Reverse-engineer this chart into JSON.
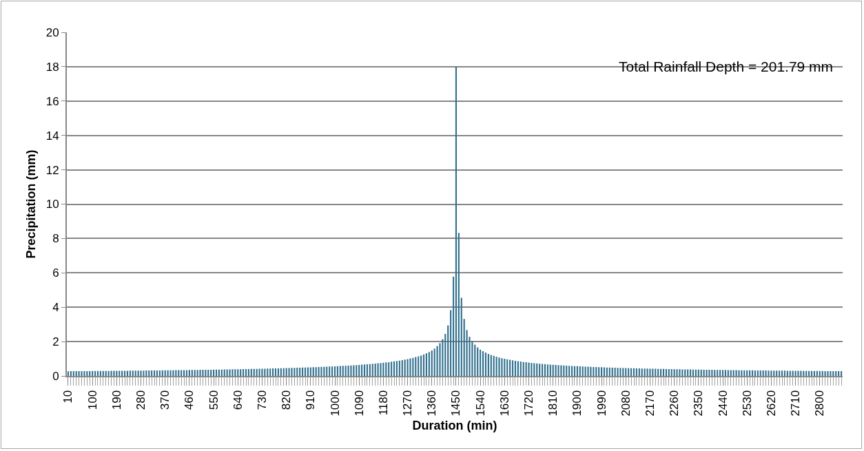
{
  "chart_data": {
    "type": "bar",
    "xlabel": "Duration (min)",
    "ylabel": "Precipitation (mm)",
    "annotations": [
      "Total Rainfall Depth = 201.79 mm"
    ],
    "categories": [
      "10",
      null,
      null,
      null,
      null,
      null,
      null,
      null,
      null,
      "100",
      null,
      null,
      null,
      null,
      null,
      null,
      null,
      null,
      "190",
      null,
      null,
      null,
      null,
      null,
      null,
      null,
      null,
      "280",
      null,
      null,
      null,
      null,
      null,
      null,
      null,
      null,
      "370",
      null,
      null,
      null,
      null,
      null,
      null,
      null,
      null,
      "460",
      null,
      null,
      null,
      null,
      null,
      null,
      null,
      null,
      "550",
      null,
      null,
      null,
      null,
      null,
      null,
      null,
      null,
      "640",
      null,
      null,
      null,
      null,
      null,
      null,
      null,
      null,
      "730",
      null,
      null,
      null,
      null,
      null,
      null,
      null,
      null,
      "820",
      null,
      null,
      null,
      null,
      null,
      null,
      null,
      null,
      "910",
      null,
      null,
      null,
      null,
      null,
      null,
      null,
      null,
      "1000",
      null,
      null,
      null,
      null,
      null,
      null,
      null,
      null,
      "1090",
      null,
      null,
      null,
      null,
      null,
      null,
      null,
      null,
      "1180",
      null,
      null,
      null,
      null,
      null,
      null,
      null,
      null,
      "1270",
      null,
      null,
      null,
      null,
      null,
      null,
      null,
      null,
      "1360",
      null,
      null,
      null,
      null,
      null,
      null,
      null,
      null,
      "1450",
      null,
      null,
      null,
      null,
      null,
      null,
      null,
      null,
      "1540",
      null,
      null,
      null,
      null,
      null,
      null,
      null,
      null,
      "1630",
      null,
      null,
      null,
      null,
      null,
      null,
      null,
      null,
      "1720",
      null,
      null,
      null,
      null,
      null,
      null,
      null,
      null,
      "1810",
      null,
      null,
      null,
      null,
      null,
      null,
      null,
      null,
      "1900",
      null,
      null,
      null,
      null,
      null,
      null,
      null,
      null,
      "1990",
      null,
      null,
      null,
      null,
      null,
      null,
      null,
      null,
      "2080",
      null,
      null,
      null,
      null,
      null,
      null,
      null,
      null,
      "2170",
      null,
      null,
      null,
      null,
      null,
      null,
      null,
      null,
      "2260",
      null,
      null,
      null,
      null,
      null,
      null,
      null,
      null,
      "2350",
      null,
      null,
      null,
      null,
      null,
      null,
      null,
      null,
      "2440",
      null,
      null,
      null,
      null,
      null,
      null,
      null,
      null,
      "2530",
      null,
      null,
      null,
      null,
      null,
      null,
      null,
      null,
      "2620",
      null,
      null,
      null,
      null,
      null,
      null,
      null,
      null,
      "2710",
      null,
      null,
      null,
      null,
      null,
      null,
      null,
      null,
      "2800",
      null,
      null,
      null,
      null,
      null,
      null,
      null,
      null
    ],
    "values": [
      0.27,
      0.28,
      0.28,
      0.28,
      0.28,
      0.28,
      0.28,
      0.28,
      0.28,
      0.29,
      0.29,
      0.29,
      0.29,
      0.29,
      0.29,
      0.29,
      0.3,
      0.3,
      0.3,
      0.3,
      0.3,
      0.3,
      0.3,
      0.31,
      0.31,
      0.31,
      0.31,
      0.31,
      0.31,
      0.32,
      0.32,
      0.32,
      0.32,
      0.32,
      0.32,
      0.33,
      0.33,
      0.33,
      0.33,
      0.33,
      0.34,
      0.34,
      0.34,
      0.34,
      0.34,
      0.35,
      0.35,
      0.35,
      0.35,
      0.36,
      0.36,
      0.36,
      0.36,
      0.36,
      0.37,
      0.37,
      0.37,
      0.37,
      0.38,
      0.38,
      0.38,
      0.39,
      0.39,
      0.39,
      0.39,
      0.4,
      0.4,
      0.4,
      0.41,
      0.41,
      0.41,
      0.42,
      0.42,
      0.42,
      0.43,
      0.43,
      0.44,
      0.44,
      0.44,
      0.45,
      0.45,
      0.46,
      0.46,
      0.47,
      0.47,
      0.48,
      0.48,
      0.49,
      0.49,
      0.5,
      0.5,
      0.51,
      0.51,
      0.52,
      0.53,
      0.53,
      0.54,
      0.55,
      0.55,
      0.56,
      0.57,
      0.58,
      0.59,
      0.59,
      0.6,
      0.61,
      0.62,
      0.63,
      0.64,
      0.66,
      0.67,
      0.68,
      0.69,
      0.71,
      0.72,
      0.74,
      0.75,
      0.77,
      0.79,
      0.8,
      0.83,
      0.85,
      0.87,
      0.89,
      0.92,
      0.95,
      0.98,
      1.02,
      1.05,
      1.1,
      1.14,
      1.19,
      1.25,
      1.32,
      1.39,
      1.48,
      1.59,
      1.74,
      1.91,
      2.14,
      2.45,
      2.94,
      3.83,
      5.78,
      18,
      8.33,
      4.55,
      3.32,
      2.67,
      2.28,
      2.02,
      1.82,
      1.66,
      1.53,
      1.44,
      1.36,
      1.28,
      1.22,
      1.17,
      1.12,
      1.07,
      1.03,
      1.0,
      0.97,
      0.94,
      0.91,
      0.88,
      0.86,
      0.84,
      0.81,
      0.8,
      0.78,
      0.76,
      0.74,
      0.73,
      0.71,
      0.7,
      0.69,
      0.67,
      0.66,
      0.65,
      0.64,
      0.63,
      0.62,
      0.61,
      0.6,
      0.59,
      0.58,
      0.57,
      0.57,
      0.56,
      0.55,
      0.54,
      0.54,
      0.53,
      0.52,
      0.52,
      0.51,
      0.51,
      0.5,
      0.49,
      0.49,
      0.48,
      0.48,
      0.47,
      0.47,
      0.46,
      0.46,
      0.45,
      0.45,
      0.45,
      0.44,
      0.44,
      0.43,
      0.43,
      0.43,
      0.42,
      0.42,
      0.42,
      0.41,
      0.41,
      0.41,
      0.4,
      0.4,
      0.4,
      0.39,
      0.39,
      0.39,
      0.38,
      0.38,
      0.38,
      0.38,
      0.37,
      0.37,
      0.37,
      0.37,
      0.36,
      0.36,
      0.36,
      0.36,
      0.35,
      0.35,
      0.35,
      0.35,
      0.35,
      0.34,
      0.34,
      0.34,
      0.34,
      0.33,
      0.33,
      0.33,
      0.33,
      0.33,
      0.33,
      0.32,
      0.32,
      0.32,
      0.32,
      0.32,
      0.31,
      0.31,
      0.31,
      0.31,
      0.31,
      0.31,
      0.31,
      0.3,
      0.3,
      0.3,
      0.3,
      0.3,
      0.3,
      0.29,
      0.29,
      0.29,
      0.29,
      0.29,
      0.29,
      0.29,
      0.29,
      0.28,
      0.28,
      0.28,
      0.28,
      0.28,
      0.28,
      0.28
    ],
    "color": "#31708f",
    "ylim": [
      0,
      20
    ],
    "yticks": [
      0,
      2,
      4,
      6,
      8,
      10,
      12,
      14,
      16,
      18,
      20
    ],
    "grid": "y"
  }
}
